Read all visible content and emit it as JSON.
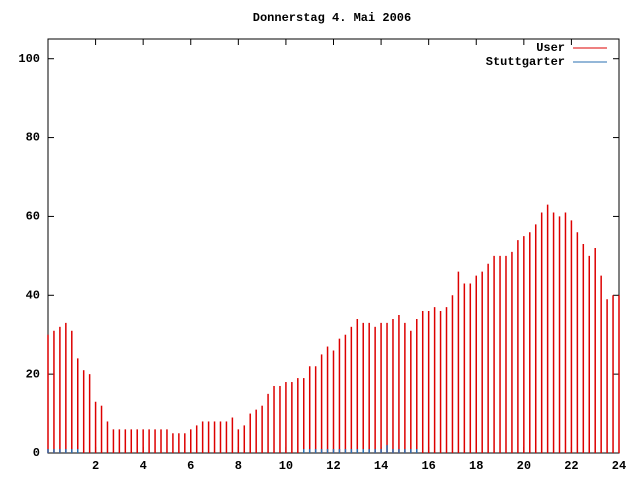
{
  "chart_data": {
    "type": "impulses",
    "title": "Donnerstag 4. Mai 2006",
    "x": [
      0,
      0.25,
      0.5,
      0.75,
      1,
      1.25,
      1.5,
      1.75,
      2,
      2.25,
      2.5,
      2.75,
      3,
      3.25,
      3.5,
      3.75,
      4,
      4.25,
      4.5,
      4.75,
      5,
      5.25,
      5.5,
      5.75,
      6,
      6.25,
      6.5,
      6.75,
      7,
      7.25,
      7.5,
      7.75,
      8,
      8.25,
      8.5,
      8.75,
      9,
      9.25,
      9.5,
      9.75,
      10,
      10.25,
      10.5,
      10.75,
      11,
      11.25,
      11.5,
      11.75,
      12,
      12.25,
      12.5,
      12.75,
      13,
      13.25,
      13.5,
      13.75,
      14,
      14.25,
      14.5,
      14.75,
      15,
      15.25,
      15.5,
      15.75,
      16,
      16.25,
      16.5,
      16.75,
      17,
      17.25,
      17.5,
      17.75,
      18,
      18.25,
      18.5,
      18.75,
      19,
      19.25,
      19.5,
      19.75,
      20,
      20.25,
      20.5,
      20.75,
      21,
      21.25,
      21.5,
      21.75,
      22,
      22.25,
      22.5,
      22.75,
      23,
      23.25,
      23.5,
      23.75,
      24
    ],
    "series": [
      {
        "name": "User",
        "color": "#dd0000",
        "values": [
          30,
          31,
          32,
          33,
          31,
          24,
          21,
          20,
          13,
          12,
          8,
          6,
          6,
          6,
          6,
          6,
          6,
          6,
          6,
          6,
          6,
          5,
          5,
          5,
          6,
          7,
          8,
          8,
          8,
          8,
          8,
          9,
          6,
          7,
          10,
          11,
          12,
          15,
          17,
          17,
          18,
          18,
          19,
          19,
          22,
          22,
          25,
          27,
          26,
          29,
          30,
          32,
          34,
          33,
          33,
          32,
          33,
          33,
          34,
          35,
          33,
          31,
          34,
          36,
          36,
          37,
          36,
          37,
          40,
          46,
          43,
          43,
          45,
          46,
          48,
          50,
          50,
          50,
          51,
          54,
          55,
          56,
          58,
          61,
          63,
          61,
          60,
          61,
          59,
          56,
          53,
          50,
          52,
          45,
          39,
          40,
          40
        ]
      },
      {
        "name": "Stuttgarter",
        "color": "#2a6fb0",
        "values": [
          1,
          1,
          1,
          1,
          1,
          1,
          null,
          null,
          null,
          null,
          null,
          null,
          null,
          null,
          null,
          null,
          null,
          null,
          null,
          null,
          null,
          null,
          null,
          null,
          null,
          null,
          null,
          null,
          null,
          null,
          null,
          null,
          null,
          null,
          null,
          null,
          null,
          null,
          null,
          null,
          null,
          null,
          null,
          1,
          1,
          1,
          1,
          1,
          1,
          1,
          1,
          1,
          1,
          1,
          1,
          1,
          1,
          2,
          1,
          1,
          1,
          1,
          1,
          null,
          null,
          null,
          null,
          null,
          null,
          null,
          null,
          null,
          null,
          null,
          null,
          null,
          null,
          null,
          null,
          null,
          null,
          null,
          null,
          null,
          null,
          null,
          null,
          null,
          null,
          null,
          null,
          null,
          null,
          null,
          null,
          null,
          null
        ]
      }
    ],
    "xlim": [
      0,
      24
    ],
    "xticks": [
      2,
      4,
      6,
      8,
      10,
      12,
      14,
      16,
      18,
      20,
      22,
      24
    ],
    "ylim": [
      0,
      105
    ],
    "yticks": [
      0,
      20,
      40,
      60,
      80,
      100
    ]
  }
}
